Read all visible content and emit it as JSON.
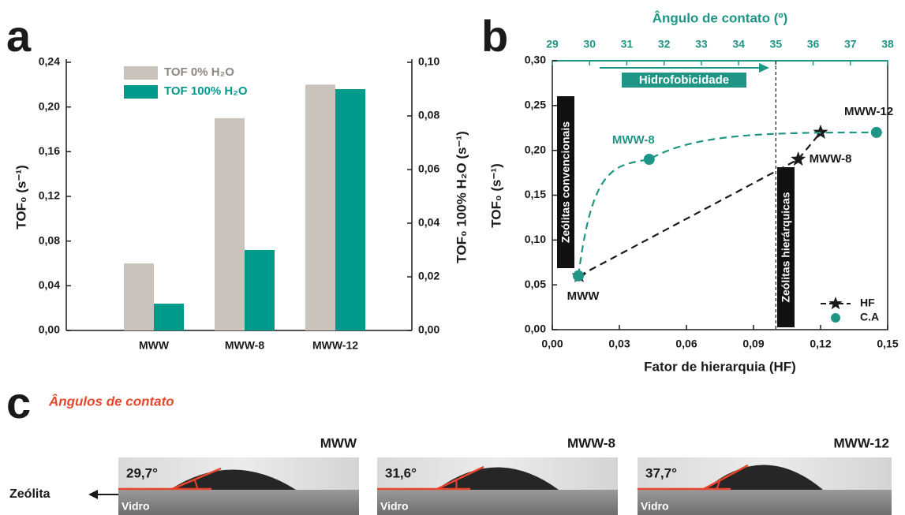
{
  "chart_data": [
    {
      "type": "bar",
      "panel_label": "a",
      "categories": [
        "MWW",
        "MWW-8",
        "MWW-12"
      ],
      "series": [
        {
          "name": "TOF 0% H₂O",
          "color": "#c9c3bc",
          "values": [
            0.06,
            0.19,
            0.22
          ]
        },
        {
          "name": "TOF 100% H₂O",
          "color": "#009a8c",
          "values": [
            0.01,
            0.03,
            0.09
          ],
          "axis": "y2"
        }
      ],
      "ylabel": "TOF₀ (s⁻¹)",
      "y2label": "TOF₀ 100% H₂O (s⁻¹)",
      "ylim": [
        0,
        0.24
      ],
      "yticks": [
        {
          "value": 0,
          "label": "0,00"
        },
        {
          "value": 0.04,
          "label": "0,04"
        },
        {
          "value": 0.08,
          "label": "0,08"
        },
        {
          "value": 0.12,
          "label": "0,12"
        },
        {
          "value": 0.16,
          "label": "0,16"
        },
        {
          "value": 0.2,
          "label": "0,20"
        },
        {
          "value": 0.24,
          "label": "0,24"
        }
      ],
      "y2lim": [
        0,
        0.1
      ],
      "y2ticks": [
        {
          "value": 0,
          "label": "0,00"
        },
        {
          "value": 0.02,
          "label": "0,02"
        },
        {
          "value": 0.04,
          "label": "0,04"
        },
        {
          "value": 0.06,
          "label": "0,06"
        },
        {
          "value": 0.08,
          "label": "0,08"
        },
        {
          "value": 0.1,
          "label": "0,10"
        }
      ],
      "legend": "upper left"
    },
    {
      "type": "line",
      "panel_label": "b",
      "xlabel": "Fator de hierarquia (HF)",
      "x2label": "Ângulo de contato (º)",
      "ylabel": "TOF₀ (s⁻¹)",
      "xlim": [
        0,
        0.15
      ],
      "xticks": [
        {
          "value": 0,
          "label": "0,00"
        },
        {
          "value": 0.03,
          "label": "0,03"
        },
        {
          "value": 0.06,
          "label": "0,06"
        },
        {
          "value": 0.09,
          "label": "0,09"
        },
        {
          "value": 0.12,
          "label": "0,12"
        },
        {
          "value": 0.15,
          "label": "0,15"
        }
      ],
      "x2lim": [
        29,
        38
      ],
      "x2ticks": [
        29,
        30,
        31,
        32,
        33,
        34,
        35,
        36,
        37,
        38
      ],
      "ylim": [
        0,
        0.3
      ],
      "yticks": [
        {
          "value": 0,
          "label": "0,00"
        },
        {
          "value": 0.05,
          "label": "0,05"
        },
        {
          "value": 0.1,
          "label": "0,10"
        },
        {
          "value": 0.15,
          "label": "0,15"
        },
        {
          "value": 0.2,
          "label": "0,20"
        },
        {
          "value": 0.25,
          "label": "0,25"
        },
        {
          "value": 0.3,
          "label": "0,30"
        }
      ],
      "series": [
        {
          "name": "HF",
          "color": "#1a1a1a",
          "marker": "star",
          "x": [
            0.012,
            0.11,
            0.12
          ],
          "values": [
            0.06,
            0.19,
            0.22
          ],
          "point_labels": [
            "MWW",
            "MWW-8",
            "MWW-12"
          ]
        },
        {
          "name": "C.A",
          "color": "#1f9585",
          "marker": "circle",
          "x_axis": "x2",
          "x": [
            29.7,
            31.6,
            37.7
          ],
          "values": [
            0.06,
            0.19,
            0.22
          ],
          "point_labels": [
            null,
            "MWW-8",
            null
          ]
        }
      ],
      "annotations": {
        "arrow": "Hidrofobicidade",
        "regions": [
          "Zeólitas convencionais",
          "Zeólitas hierárquicas"
        ],
        "divider_x": 0.1
      },
      "legend": "lower right"
    }
  ],
  "panel_c": {
    "panel_label": "c",
    "title": "Ângulos de contato",
    "substrate_label": "Zeólita",
    "glass_label": "Vidro",
    "samples": [
      {
        "name": "MWW",
        "angle": "29,7°"
      },
      {
        "name": "MWW-8",
        "angle": "31,6°"
      },
      {
        "name": "MWW-12",
        "angle": "37,7°"
      }
    ]
  }
}
